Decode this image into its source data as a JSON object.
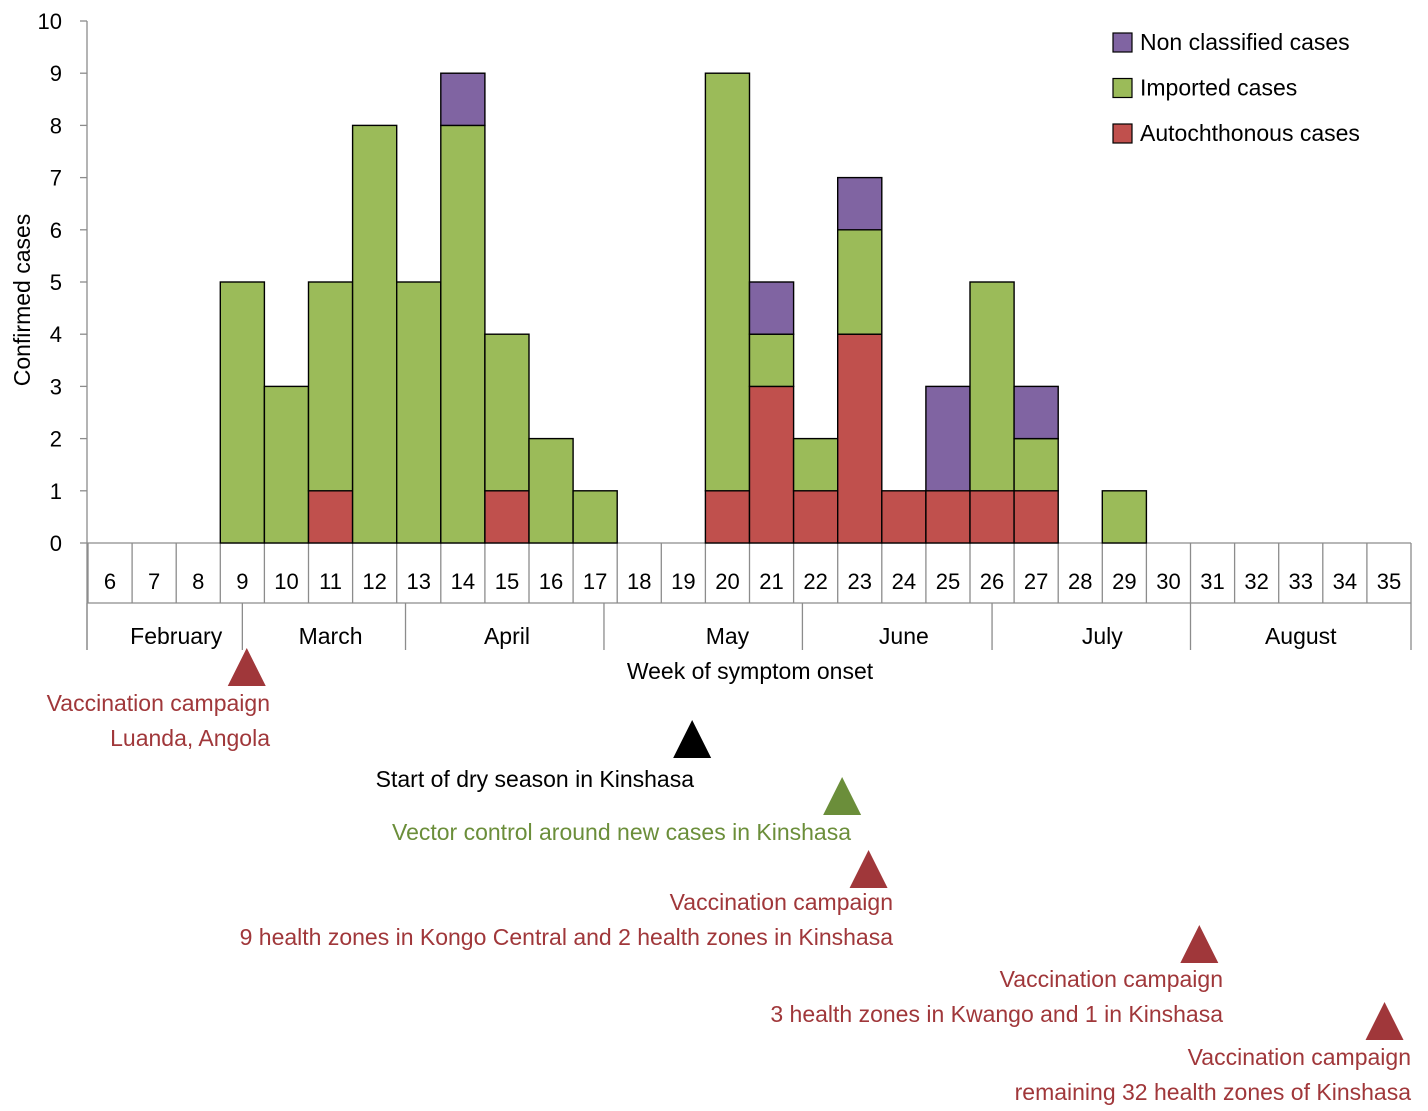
{
  "chart_data": {
    "type": "bar",
    "stacked": true,
    "title": "",
    "xlabel": "Week of symptom onset",
    "ylabel": "Confirmed cases",
    "ylim": [
      0,
      10
    ],
    "y_ticks": [
      "0",
      "1",
      "2",
      "3",
      "4",
      "5",
      "6",
      "7",
      "8",
      "9",
      "10"
    ],
    "grid": false,
    "legend_position": "top-right",
    "categories": [
      "6",
      "7",
      "8",
      "9",
      "10",
      "11",
      "12",
      "13",
      "14",
      "15",
      "16",
      "17",
      "18",
      "19",
      "20",
      "21",
      "22",
      "23",
      "24",
      "25",
      "26",
      "27",
      "28",
      "29",
      "30",
      "31",
      "32",
      "33",
      "34",
      "35"
    ],
    "months": [
      {
        "label": "February",
        "from_week": 6,
        "to_week": 9
      },
      {
        "label": "March",
        "from_week": 9,
        "to_week": 13
      },
      {
        "label": "April",
        "from_week": 13,
        "to_week": 17
      },
      {
        "label": "May",
        "from_week": 18,
        "to_week": 22
      },
      {
        "label": "June",
        "from_week": 22,
        "to_week": 26
      },
      {
        "label": "July",
        "from_week": 27,
        "to_week": 30
      },
      {
        "label": "August",
        "from_week": 31,
        "to_week": 35
      }
    ],
    "series": [
      {
        "name": "Autochthonous cases",
        "color": "#c0504d",
        "values": [
          0,
          0,
          0,
          0,
          0,
          1,
          0,
          0,
          0,
          1,
          0,
          0,
          0,
          0,
          1,
          3,
          1,
          4,
          1,
          1,
          1,
          1,
          0,
          0,
          0,
          0,
          0,
          0,
          0,
          0
        ]
      },
      {
        "name": "Imported cases",
        "color": "#9bbb59",
        "values": [
          0,
          0,
          0,
          5,
          3,
          4,
          8,
          5,
          8,
          3,
          2,
          1,
          0,
          0,
          8,
          1,
          1,
          2,
          0,
          0,
          4,
          1,
          0,
          1,
          0,
          0,
          0,
          0,
          0,
          0
        ]
      },
      {
        "name": "Non classified cases",
        "color": "#8064a2",
        "values": [
          0,
          0,
          0,
          0,
          0,
          0,
          0,
          0,
          1,
          0,
          0,
          0,
          0,
          0,
          0,
          1,
          0,
          1,
          0,
          2,
          0,
          1,
          0,
          0,
          0,
          0,
          0,
          0,
          0,
          0
        ]
      }
    ],
    "legend_order": [
      "Non classified cases",
      "Imported cases",
      "Autochthonous cases"
    ],
    "annotations": [
      {
        "week": 9.1,
        "row": 0,
        "color": "#a0373a",
        "lines": [
          "Vaccination campaign",
          "Luanda, Angola"
        ]
      },
      {
        "week": 19.2,
        "row": 1,
        "color": "#000000",
        "lines": [
          "Start of dry season in Kinshasa"
        ]
      },
      {
        "week": 22.6,
        "row": 2,
        "color": "#6b8e3a",
        "lines": [
          "Vector control around new cases in Kinshasa"
        ]
      },
      {
        "week": 23.2,
        "row": 3,
        "color": "#a0373a",
        "lines": [
          "Vaccination campaign",
          "9 health zones in Kongo Central and 2 health zones in Kinshasa"
        ]
      },
      {
        "week": 30.7,
        "row": 4,
        "color": "#a0373a",
        "lines": [
          "Vaccination campaign",
          "3 health zones in Kwango and 1 in Kinshasa"
        ]
      },
      {
        "week": 34.9,
        "row": 5,
        "color": "#a0373a",
        "lines": [
          "Vaccination campaign",
          "remaining 32 health zones of Kinshasa"
        ]
      }
    ]
  }
}
